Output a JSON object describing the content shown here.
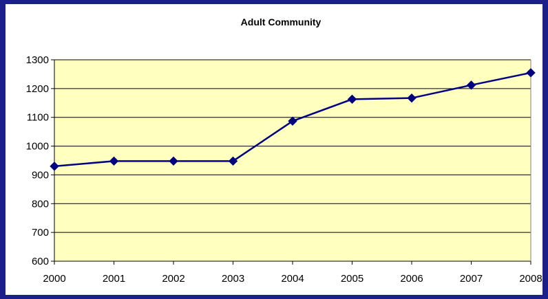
{
  "chart_data": {
    "type": "line",
    "title": "Adult Community",
    "xlabel": "",
    "ylabel": "",
    "x": [
      "2000",
      "2001",
      "2002",
      "2003",
      "2004",
      "2005",
      "2006",
      "2007",
      "2008"
    ],
    "series": [
      {
        "values": [
          930,
          948,
          948,
          948,
          1087,
          1163,
          1167,
          1212,
          1255
        ]
      }
    ],
    "ylim": [
      600,
      1300
    ],
    "yticks": [
      600,
      700,
      800,
      900,
      1000,
      1100,
      1200,
      1300
    ],
    "grid": true,
    "legend": "none",
    "colors": {
      "plot_background": "#ffffc0",
      "line": "#000080",
      "marker": "#000080",
      "gridline": "#000000",
      "frame": "#1a1f8c"
    }
  }
}
